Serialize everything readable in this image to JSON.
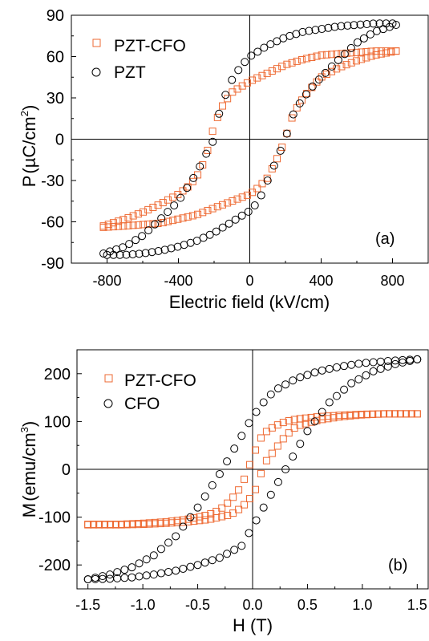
{
  "chart_data": [
    {
      "panel": "(a)",
      "type": "scatter",
      "xlabel": "Electric field (kV/cm)",
      "ylabel_main": "P",
      "ylabel_unit": "µC/cm",
      "ylabel_sup": "2",
      "xlim": [
        -1000,
        1000
      ],
      "ylim": [
        -90,
        90
      ],
      "xticks": [
        -800,
        -400,
        0,
        400,
        800
      ],
      "yticks": [
        -90,
        -60,
        -30,
        0,
        30,
        60,
        90
      ],
      "xtick_labels": [
        "-800",
        "-400",
        "0",
        "400",
        "800"
      ],
      "ytick_labels": [
        "-90",
        "-60",
        "-30",
        "0",
        "30",
        "60",
        "90"
      ],
      "legend_position": "top-left",
      "series": [
        {
          "name": "PZT-CFO",
          "marker": "square",
          "color": "#ee6a33",
          "upper": [
            [
              -820,
              -63
            ],
            [
              -700,
              -58
            ],
            [
              -600,
              -53
            ],
            [
              -500,
              -47
            ],
            [
              -400,
              -40
            ],
            [
              -350,
              -35
            ],
            [
              -300,
              -28
            ],
            [
              -250,
              -15
            ],
            [
              -220,
              0
            ],
            [
              -200,
              10
            ],
            [
              -150,
              25
            ],
            [
              -100,
              34
            ],
            [
              -50,
              38
            ],
            [
              0,
              42
            ],
            [
              100,
              48
            ],
            [
              200,
              54
            ],
            [
              300,
              58
            ],
            [
              400,
              61
            ],
            [
              500,
              62
            ],
            [
              600,
              63
            ],
            [
              700,
              64
            ],
            [
              820,
              64
            ]
          ],
          "lower": [
            [
              -820,
              -64
            ],
            [
              -700,
              -63
            ],
            [
              -600,
              -62
            ],
            [
              -500,
              -61
            ],
            [
              -400,
              -58
            ],
            [
              -300,
              -55
            ],
            [
              -200,
              -50
            ],
            [
              -100,
              -45
            ],
            [
              0,
              -40
            ],
            [
              50,
              -35
            ],
            [
              100,
              -28
            ],
            [
              150,
              -15
            ],
            [
              200,
              0
            ],
            [
              220,
              10
            ],
            [
              250,
              20
            ],
            [
              300,
              30
            ],
            [
              350,
              38
            ],
            [
              400,
              45
            ],
            [
              500,
              52
            ],
            [
              600,
              57
            ],
            [
              700,
              61
            ],
            [
              820,
              64
            ]
          ]
        },
        {
          "name": "PZT",
          "marker": "circle",
          "color": "#000000",
          "upper": [
            [
              -820,
              -83
            ],
            [
              -700,
              -78
            ],
            [
              -600,
              -70
            ],
            [
              -500,
              -58
            ],
            [
              -400,
              -45
            ],
            [
              -300,
              -25
            ],
            [
              -250,
              -12
            ],
            [
              -200,
              0
            ],
            [
              -180,
              15
            ],
            [
              -150,
              28
            ],
            [
              -100,
              43
            ],
            [
              -50,
              53
            ],
            [
              0,
              60
            ],
            [
              100,
              68
            ],
            [
              200,
              74
            ],
            [
              300,
              78
            ],
            [
              400,
              80
            ],
            [
              500,
              82
            ],
            [
              600,
              83
            ],
            [
              700,
              84
            ],
            [
              800,
              84
            ]
          ],
          "lower": [
            [
              -800,
              -84
            ],
            [
              -700,
              -84
            ],
            [
              -600,
              -83
            ],
            [
              -500,
              -81
            ],
            [
              -400,
              -78
            ],
            [
              -300,
              -74
            ],
            [
              -200,
              -68
            ],
            [
              -100,
              -60
            ],
            [
              0,
              -52
            ],
            [
              50,
              -45
            ],
            [
              100,
              -30
            ],
            [
              150,
              -15
            ],
            [
              200,
              0
            ],
            [
              220,
              10
            ],
            [
              250,
              20
            ],
            [
              300,
              30
            ],
            [
              350,
              38
            ],
            [
              400,
              45
            ],
            [
              500,
              58
            ],
            [
              600,
              70
            ],
            [
              700,
              78
            ],
            [
              820,
              83
            ]
          ]
        }
      ]
    },
    {
      "panel": "(b)",
      "type": "scatter",
      "xlabel": "H (T)",
      "ylabel_main": "M",
      "ylabel_unit": "emu/cm",
      "ylabel_sup": "3",
      "xlim": [
        -1.6,
        1.6
      ],
      "ylim": [
        -250,
        250
      ],
      "xticks": [
        -1.5,
        -1.0,
        -0.5,
        0.0,
        0.5,
        1.0,
        1.5
      ],
      "yticks": [
        -200,
        -100,
        0,
        100,
        200
      ],
      "xtick_labels": [
        "-1.5",
        "-1.0",
        "-0.5",
        "0.0",
        "0.5",
        "1.0",
        "1.5"
      ],
      "ytick_labels": [
        "-200",
        "-100",
        "0",
        "100",
        "200"
      ],
      "legend_position": "top-left",
      "series": [
        {
          "name": "PZT-CFO",
          "marker": "square",
          "color": "#ee6a33",
          "upper": [
            [
              -1.5,
              -115
            ],
            [
              -1.2,
              -115
            ],
            [
              -1.0,
              -113
            ],
            [
              -0.8,
              -110
            ],
            [
              -0.6,
              -105
            ],
            [
              -0.4,
              -95
            ],
            [
              -0.3,
              -85
            ],
            [
              -0.2,
              -65
            ],
            [
              -0.1,
              -35
            ],
            [
              0.0,
              25
            ],
            [
              0.05,
              55
            ],
            [
              0.1,
              75
            ],
            [
              0.2,
              90
            ],
            [
              0.3,
              100
            ],
            [
              0.4,
              105
            ],
            [
              0.6,
              110
            ],
            [
              0.8,
              113
            ],
            [
              1.0,
              115
            ],
            [
              1.2,
              116
            ],
            [
              1.5,
              116
            ]
          ],
          "lower": [
            [
              -1.5,
              -116
            ],
            [
              -1.2,
              -116
            ],
            [
              -1.0,
              -115
            ],
            [
              -0.8,
              -113
            ],
            [
              -0.6,
              -110
            ],
            [
              -0.4,
              -105
            ],
            [
              -0.2,
              -95
            ],
            [
              -0.1,
              -80
            ],
            [
              0.0,
              -55
            ],
            [
              0.05,
              -30
            ],
            [
              0.1,
              10
            ],
            [
              0.2,
              40
            ],
            [
              0.3,
              70
            ],
            [
              0.4,
              90
            ],
            [
              0.6,
              103
            ],
            [
              0.8,
              110
            ],
            [
              1.0,
              114
            ],
            [
              1.2,
              116
            ],
            [
              1.5,
              116
            ]
          ]
        },
        {
          "name": "CFO",
          "marker": "circle",
          "color": "#000000",
          "upper": [
            [
              -1.5,
              -230
            ],
            [
              -1.3,
              -220
            ],
            [
              -1.1,
              -205
            ],
            [
              -0.9,
              -180
            ],
            [
              -0.7,
              -140
            ],
            [
              -0.5,
              -80
            ],
            [
              -0.4,
              -45
            ],
            [
              -0.3,
              -10
            ],
            [
              -0.2,
              30
            ],
            [
              -0.1,
              70
            ],
            [
              0.0,
              110
            ],
            [
              0.1,
              140
            ],
            [
              0.2,
              165
            ],
            [
              0.4,
              190
            ],
            [
              0.6,
              205
            ],
            [
              0.8,
              215
            ],
            [
              1.0,
              222
            ],
            [
              1.2,
              226
            ],
            [
              1.4,
              229
            ],
            [
              1.5,
              230
            ]
          ],
          "lower": [
            [
              -1.5,
              -230
            ],
            [
              -1.3,
              -229
            ],
            [
              -1.1,
              -226
            ],
            [
              -0.9,
              -220
            ],
            [
              -0.7,
              -212
            ],
            [
              -0.5,
              -200
            ],
            [
              -0.3,
              -185
            ],
            [
              -0.1,
              -160
            ],
            [
              0.0,
              -120
            ],
            [
              0.1,
              -80
            ],
            [
              0.2,
              -40
            ],
            [
              0.3,
              0
            ],
            [
              0.4,
              40
            ],
            [
              0.5,
              80
            ],
            [
              0.7,
              140
            ],
            [
              0.9,
              180
            ],
            [
              1.1,
              205
            ],
            [
              1.3,
              220
            ],
            [
              1.5,
              230
            ]
          ]
        }
      ]
    }
  ]
}
